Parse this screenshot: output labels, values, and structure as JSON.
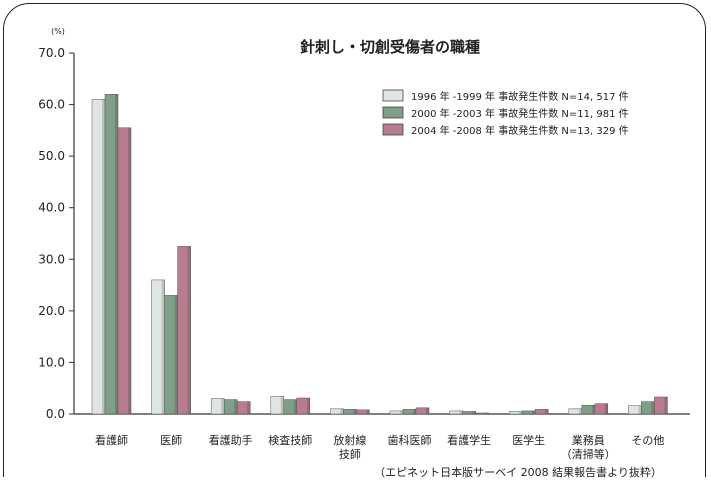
{
  "chart_data": {
    "type": "bar",
    "title": "針刺し・切創受傷者の職種",
    "ylabel": "(%)",
    "ylim": [
      0,
      70
    ],
    "yticks": [
      "0.0",
      "10.0",
      "20.0",
      "30.0",
      "40.0",
      "50.0",
      "60.0",
      "70.0"
    ],
    "categories": [
      [
        "看護師"
      ],
      [
        "医師"
      ],
      [
        "看護助手"
      ],
      [
        "検査技師"
      ],
      [
        "放射線",
        "技師"
      ],
      [
        "歯科医師"
      ],
      [
        "看護学生"
      ],
      [
        "医学生"
      ],
      [
        "業務員",
        "（清掃等）"
      ],
      [
        "その他"
      ]
    ],
    "series": [
      {
        "name": "1996 年 -1999 年  事故発生件数  N=14, 517 件",
        "color": "#dfe5e1",
        "values": [
          61.0,
          26.0,
          3.0,
          3.4,
          1.0,
          0.6,
          0.6,
          0.5,
          1.0,
          1.6
        ]
      },
      {
        "name": "2000 年 -2003 年  事故発生件数  N=11, 981 件",
        "color": "#7f9f88",
        "values": [
          62.0,
          23.0,
          2.8,
          2.8,
          0.9,
          0.9,
          0.5,
          0.6,
          1.7,
          2.4
        ]
      },
      {
        "name": "2004 年 -2008 年  事故発生件数  N=13, 329 件",
        "color": "#b77d8f",
        "values": [
          55.5,
          32.5,
          2.4,
          3.1,
          0.8,
          1.2,
          0.2,
          0.9,
          2.0,
          3.3
        ]
      }
    ],
    "legend_position": "top-right",
    "grid": false
  },
  "source_note": "（エピネット日本版サーベイ 2008 結果報告書より抜粋）"
}
